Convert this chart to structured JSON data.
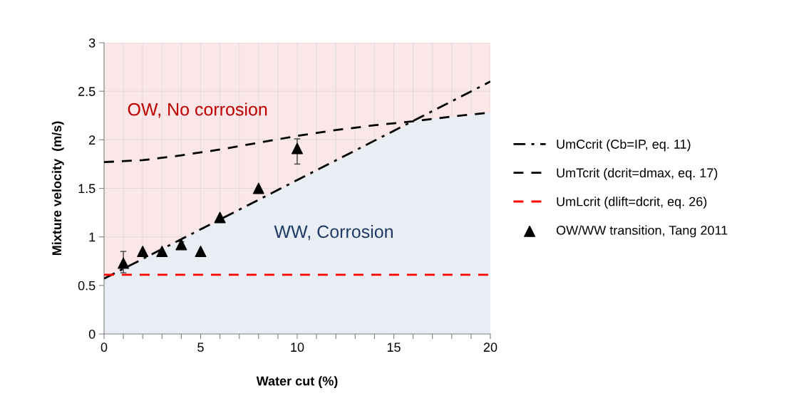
{
  "chart_data": {
    "type": "line",
    "xlabel": "Water cut (%)",
    "ylabel": "Mixture velocity  (m/s)",
    "xlim": [
      0,
      20
    ],
    "ylim": [
      0,
      3
    ],
    "xticks": [
      0,
      {
        "value": 1,
        "label": null
      },
      {
        "value": 2,
        "label": null
      },
      {
        "value": 3,
        "label": null
      },
      {
        "value": 4,
        "label": null
      },
      5,
      {
        "value": 6,
        "label": null
      },
      {
        "value": 7,
        "label": null
      },
      {
        "value": 8,
        "label": null
      },
      {
        "value": 9,
        "label": null
      },
      10,
      {
        "value": 11,
        "label": null
      },
      {
        "value": 12,
        "label": null
      },
      {
        "value": 13,
        "label": null
      },
      {
        "value": 14,
        "label": null
      },
      15,
      {
        "value": 16,
        "label": null
      },
      {
        "value": 17,
        "label": null
      },
      {
        "value": 18,
        "label": null
      },
      {
        "value": 19,
        "label": null
      },
      20
    ],
    "yticks": [
      0,
      0.5,
      1,
      1.5,
      2,
      2.5,
      3
    ],
    "grid": true,
    "legend": "right",
    "bands": [
      {
        "axis": "y",
        "from": 0,
        "to": 3,
        "color": "#fbe7e7"
      }
    ],
    "series": [
      {
        "type": "area",
        "color": "#e9eef5",
        "x": [
          0,
          16.2,
          20
        ],
        "values": [
          0.57,
          2.2,
          2.28
        ]
      },
      {
        "name": "UmCcrit (Cb=IP, eq. 11)",
        "line_style": "dashdot",
        "color": "#000000",
        "x": [
          0,
          20
        ],
        "values": [
          0.57,
          2.6
        ]
      },
      {
        "name": "UmTcrit (dcrit=dmax, eq. 17)",
        "line_style": "dashed",
        "color": "#000000",
        "x": [
          0,
          2,
          4,
          6,
          8,
          10,
          12,
          14,
          16,
          18,
          20
        ],
        "values": [
          1.77,
          1.79,
          1.84,
          1.9,
          1.97,
          2.04,
          2.1,
          2.15,
          2.19,
          2.24,
          2.28
        ]
      },
      {
        "name": "UmLcrit (dlift=dcrit, eq. 26)",
        "line_style": "dashed",
        "color": "#ff0000",
        "x": [
          0,
          20
        ],
        "values": [
          0.61,
          0.61
        ]
      },
      {
        "name": "OW/WW transition, Tang 2011",
        "type": "scatter",
        "marker": "triangle",
        "color": "#000000",
        "x": [
          1,
          2,
          3,
          4,
          5,
          6,
          8,
          10
        ],
        "values": [
          0.73,
          0.85,
          0.85,
          0.92,
          0.85,
          1.2,
          1.5,
          1.91
        ],
        "errors": [
          [
            0.63,
            0.85
          ],
          null,
          null,
          [
            0.88,
            0.95
          ],
          null,
          null,
          null,
          [
            1.75,
            2.01
          ]
        ]
      }
    ],
    "annotations": [
      "OW, No corrosion",
      "WW, Corrosion"
    ]
  }
}
